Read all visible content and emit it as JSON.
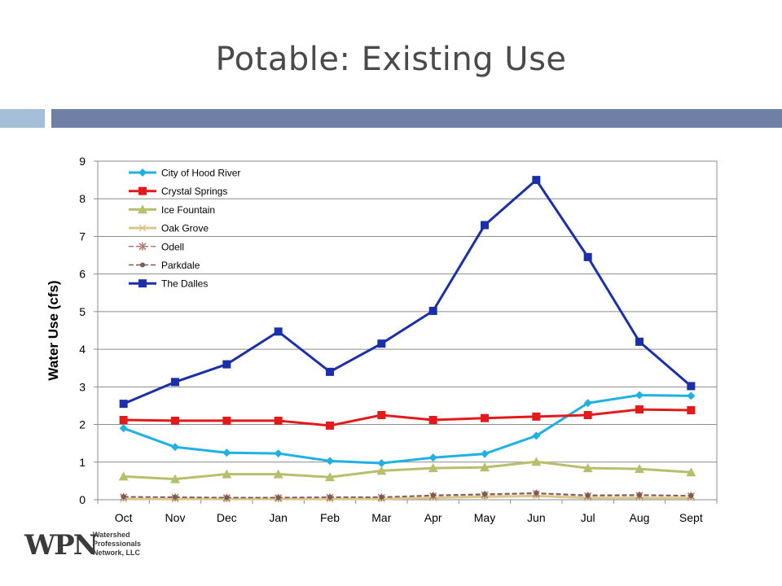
{
  "slide": {
    "title": "Potable: Existing Use"
  },
  "logo": {
    "mark": "WPN",
    "line1": "Watershed",
    "line2": "Professionals",
    "line3": "Network, LLC"
  },
  "chart_data": {
    "type": "line",
    "title": "",
    "xlabel": "",
    "ylabel": "Water Use (cfs)",
    "ylim": [
      0,
      9
    ],
    "yticks": [
      0,
      1,
      2,
      3,
      4,
      5,
      6,
      7,
      8,
      9
    ],
    "grid": true,
    "legend_position": "top-left",
    "categories": [
      "Oct",
      "Nov",
      "Dec",
      "Jan",
      "Feb",
      "Mar",
      "Apr",
      "May",
      "Jun",
      "Jul",
      "Aug",
      "Sept"
    ],
    "series": [
      {
        "name": "City of Hood River",
        "color": "#1fb1e4",
        "marker": "diamond",
        "dash": "solid",
        "values": [
          1.9,
          1.4,
          1.25,
          1.23,
          1.03,
          0.97,
          1.12,
          1.22,
          1.7,
          2.57,
          2.78,
          2.76
        ]
      },
      {
        "name": "Crystal Springs",
        "color": "#e31a1c",
        "marker": "square",
        "dash": "solid",
        "values": [
          2.12,
          2.1,
          2.1,
          2.1,
          1.97,
          2.25,
          2.12,
          2.17,
          2.21,
          2.25,
          2.4,
          2.38
        ]
      },
      {
        "name": "Ice Fountain",
        "color": "#b8bf6b",
        "marker": "triangle",
        "dash": "solid",
        "values": [
          0.62,
          0.55,
          0.68,
          0.68,
          0.6,
          0.77,
          0.84,
          0.86,
          1.01,
          0.84,
          0.82,
          0.73
        ]
      },
      {
        "name": "Oak Grove",
        "color": "#d9c88a",
        "marker": "x",
        "dash": "solid",
        "values": [
          0.02,
          0.02,
          0.02,
          0.02,
          0.02,
          0.02,
          0.05,
          0.08,
          0.1,
          0.05,
          0.05,
          0.05
        ]
      },
      {
        "name": "Odell",
        "color": "#b07a73",
        "marker": "asterisk",
        "dash": "dash",
        "values": [
          0.07,
          0.06,
          0.05,
          0.05,
          0.06,
          0.06,
          0.1,
          0.13,
          0.16,
          0.1,
          0.11,
          0.1
        ]
      },
      {
        "name": "Parkdale",
        "color": "#7a5a52",
        "marker": "circle",
        "dash": "dash",
        "values": [
          0.08,
          0.07,
          0.06,
          0.06,
          0.07,
          0.07,
          0.12,
          0.15,
          0.18,
          0.12,
          0.13,
          0.11
        ]
      },
      {
        "name": "The Dalles",
        "color": "#1a2fa8",
        "marker": "square",
        "dash": "solid",
        "values": [
          2.55,
          3.13,
          3.6,
          4.47,
          3.4,
          4.15,
          5.02,
          7.3,
          8.5,
          6.45,
          4.2,
          3.02
        ]
      }
    ]
  }
}
